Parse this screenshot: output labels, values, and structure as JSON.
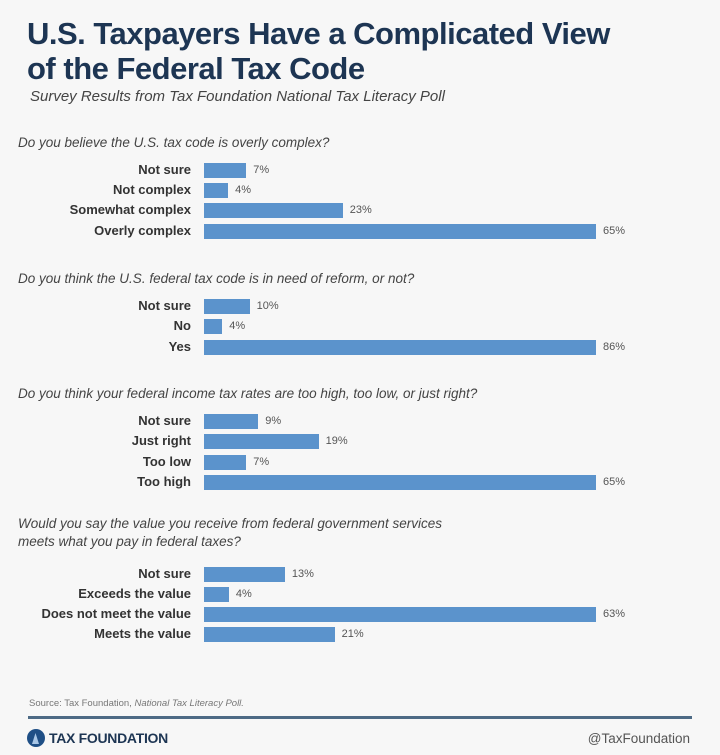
{
  "title_line1": "U.S. Taxpayers Have a Complicated View",
  "title_line2": "of the Federal Tax Code",
  "subtitle": "Survey Results from Tax Foundation National Tax Literacy Poll",
  "bar_color": "#5b93cc",
  "chart_data": [
    {
      "type": "bar",
      "orientation": "horizontal",
      "title": "Do you believe the U.S. tax code is overly complex?",
      "categories": [
        "Not sure",
        "Not complex",
        "Somewhat complex",
        "Overly complex"
      ],
      "values": [
        7,
        4,
        23,
        65
      ],
      "labels": [
        "7%",
        "4%",
        "23%",
        "65%"
      ]
    },
    {
      "type": "bar",
      "orientation": "horizontal",
      "title": "Do you think the U.S. federal tax code is in need of reform, or not?",
      "categories": [
        "Not sure",
        "No",
        "Yes"
      ],
      "values": [
        10,
        4,
        86
      ],
      "labels": [
        "10%",
        "4%",
        "86%"
      ]
    },
    {
      "type": "bar",
      "orientation": "horizontal",
      "title": "Do you think your federal income tax rates are too high, too low, or just right?",
      "categories": [
        "Not sure",
        "Just right",
        "Too low",
        "Too high"
      ],
      "values": [
        9,
        19,
        7,
        65
      ],
      "labels": [
        "9%",
        "19%",
        "7%",
        "65%"
      ]
    },
    {
      "type": "bar",
      "orientation": "horizontal",
      "title": "Would you say the value you receive from federal government services",
      "title_line2": "meets what you pay in federal taxes?",
      "categories": [
        "Not sure",
        "Exceeds the value",
        "Does not meet the value",
        "Meets the value"
      ],
      "values": [
        13,
        4,
        63,
        21
      ],
      "labels": [
        "13%",
        "4%",
        "63%",
        "21%"
      ]
    }
  ],
  "source_prefix": "Source: Tax Foundation, ",
  "source_italic": "National Tax Literacy Poll.",
  "logo_text": "TAX FOUNDATION",
  "handle": "@TaxFoundation"
}
